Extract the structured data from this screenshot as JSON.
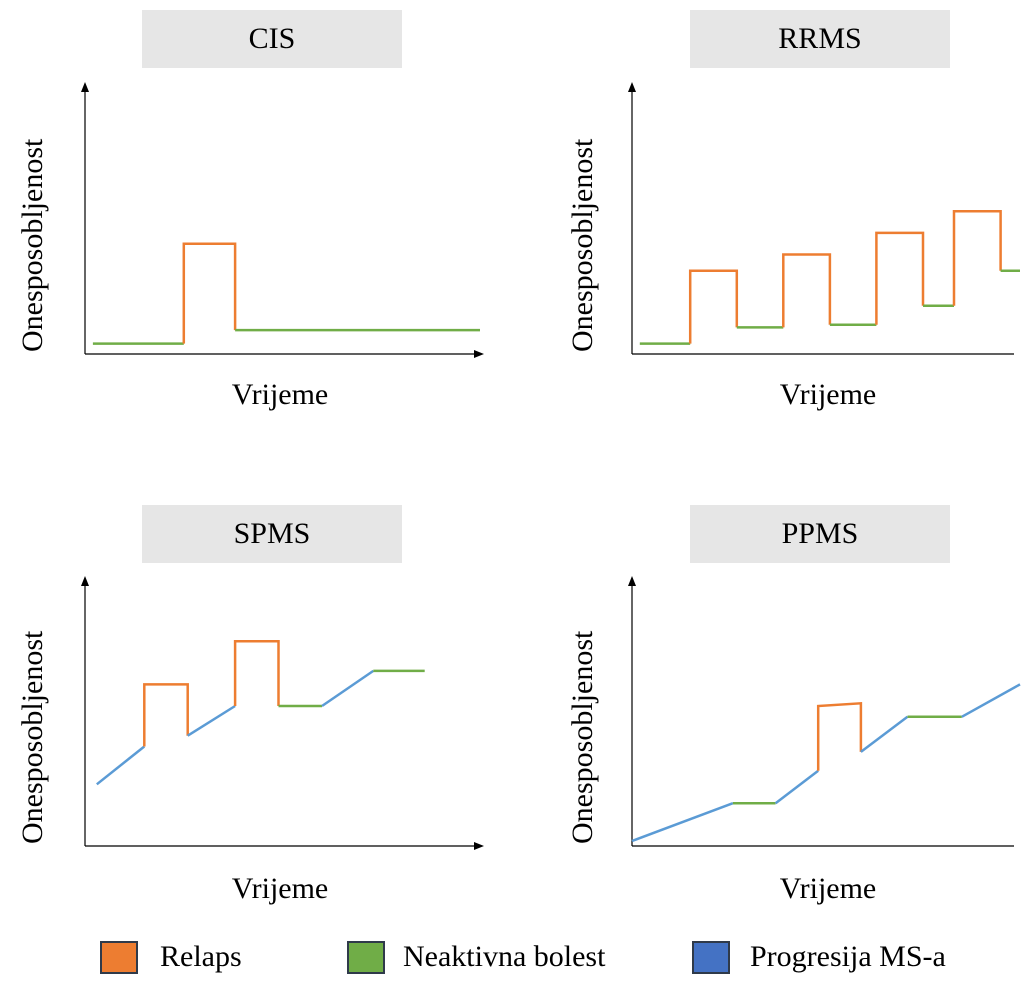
{
  "colors": {
    "relapse": "#ED7D31",
    "inactive": "#70AD47",
    "progression": "#5B9BD5",
    "progression_swatch": "#4472C4",
    "title_bg": "#E6E6E6",
    "axis": "#000000"
  },
  "panels": [
    {
      "id": "cis",
      "title": "CIS",
      "ylabel": "Onesposobljenost",
      "xlabel": "Vrijeme",
      "segments": [
        {
          "kind": "inactive",
          "points": [
            [
              0.02,
              0.02
            ],
            [
              0.25,
              0.02
            ]
          ]
        },
        {
          "kind": "relapse",
          "points": [
            [
              0.25,
              0.02
            ],
            [
              0.25,
              0.39
            ],
            [
              0.38,
              0.39
            ],
            [
              0.38,
              0.07
            ]
          ]
        },
        {
          "kind": "inactive",
          "points": [
            [
              0.38,
              0.07
            ],
            [
              1.0,
              0.07
            ]
          ]
        }
      ]
    },
    {
      "id": "rrms",
      "title": "RRMS",
      "ylabel": "Onesposobljenost",
      "xlabel": "Vrijeme",
      "segments": [
        {
          "kind": "inactive",
          "points": [
            [
              0.02,
              0.02
            ],
            [
              0.15,
              0.02
            ]
          ]
        },
        {
          "kind": "relapse",
          "points": [
            [
              0.15,
              0.02
            ],
            [
              0.15,
              0.29
            ],
            [
              0.27,
              0.29
            ],
            [
              0.27,
              0.08
            ]
          ]
        },
        {
          "kind": "inactive",
          "points": [
            [
              0.27,
              0.08
            ],
            [
              0.39,
              0.08
            ]
          ]
        },
        {
          "kind": "relapse",
          "points": [
            [
              0.39,
              0.08
            ],
            [
              0.39,
              0.35
            ],
            [
              0.51,
              0.35
            ],
            [
              0.51,
              0.09
            ]
          ]
        },
        {
          "kind": "inactive",
          "points": [
            [
              0.51,
              0.09
            ],
            [
              0.63,
              0.09
            ]
          ]
        },
        {
          "kind": "relapse",
          "points": [
            [
              0.63,
              0.09
            ],
            [
              0.63,
              0.43
            ],
            [
              0.75,
              0.43
            ],
            [
              0.75,
              0.16
            ]
          ]
        },
        {
          "kind": "inactive",
          "points": [
            [
              0.75,
              0.16
            ],
            [
              0.83,
              0.16
            ]
          ]
        },
        {
          "kind": "relapse",
          "points": [
            [
              0.83,
              0.16
            ],
            [
              0.83,
              0.51
            ],
            [
              0.95,
              0.51
            ],
            [
              0.95,
              0.29
            ]
          ]
        },
        {
          "kind": "inactive",
          "points": [
            [
              0.95,
              0.29
            ],
            [
              1.0,
              0.29
            ]
          ]
        }
      ]
    },
    {
      "id": "spms",
      "title": "SPMS",
      "ylabel": "Onesposobljenost",
      "xlabel": "Vrijeme",
      "segments": [
        {
          "kind": "progression",
          "points": [
            [
              0.03,
              0.21
            ],
            [
              0.15,
              0.35
            ]
          ]
        },
        {
          "kind": "relapse",
          "points": [
            [
              0.15,
              0.35
            ],
            [
              0.15,
              0.58
            ],
            [
              0.26,
              0.58
            ],
            [
              0.26,
              0.39
            ]
          ]
        },
        {
          "kind": "progression",
          "points": [
            [
              0.26,
              0.39
            ],
            [
              0.38,
              0.5
            ]
          ]
        },
        {
          "kind": "relapse",
          "points": [
            [
              0.38,
              0.5
            ],
            [
              0.38,
              0.74
            ],
            [
              0.49,
              0.74
            ],
            [
              0.49,
              0.5
            ]
          ]
        },
        {
          "kind": "inactive",
          "points": [
            [
              0.49,
              0.5
            ],
            [
              0.6,
              0.5
            ]
          ]
        },
        {
          "kind": "progression",
          "points": [
            [
              0.6,
              0.5
            ],
            [
              0.73,
              0.63
            ]
          ]
        },
        {
          "kind": "inactive",
          "points": [
            [
              0.73,
              0.63
            ],
            [
              0.86,
              0.63
            ]
          ]
        }
      ]
    },
    {
      "id": "ppms",
      "title": "PPMS",
      "ylabel": "Onesposobljenost",
      "xlabel": "Vrijeme",
      "segments": [
        {
          "kind": "progression",
          "points": [
            [
              0.0,
              0.0
            ],
            [
              0.26,
              0.14
            ]
          ]
        },
        {
          "kind": "inactive",
          "points": [
            [
              0.26,
              0.14
            ],
            [
              0.37,
              0.14
            ]
          ]
        },
        {
          "kind": "progression",
          "points": [
            [
              0.37,
              0.14
            ],
            [
              0.48,
              0.26
            ]
          ]
        },
        {
          "kind": "relapse",
          "points": [
            [
              0.48,
              0.26
            ],
            [
              0.48,
              0.5
            ],
            [
              0.59,
              0.51
            ],
            [
              0.59,
              0.33
            ]
          ]
        },
        {
          "kind": "progression",
          "points": [
            [
              0.59,
              0.33
            ],
            [
              0.71,
              0.46
            ]
          ]
        },
        {
          "kind": "inactive",
          "points": [
            [
              0.71,
              0.46
            ],
            [
              0.85,
              0.46
            ]
          ]
        },
        {
          "kind": "progression",
          "points": [
            [
              0.85,
              0.46
            ],
            [
              1.0,
              0.58
            ]
          ]
        }
      ]
    }
  ],
  "legend": [
    {
      "kind": "relapse",
      "label": "Relaps"
    },
    {
      "kind": "inactive",
      "label": "Neaktivna bolest"
    },
    {
      "kind": "progression",
      "label": "Progresija MS-a"
    }
  ]
}
